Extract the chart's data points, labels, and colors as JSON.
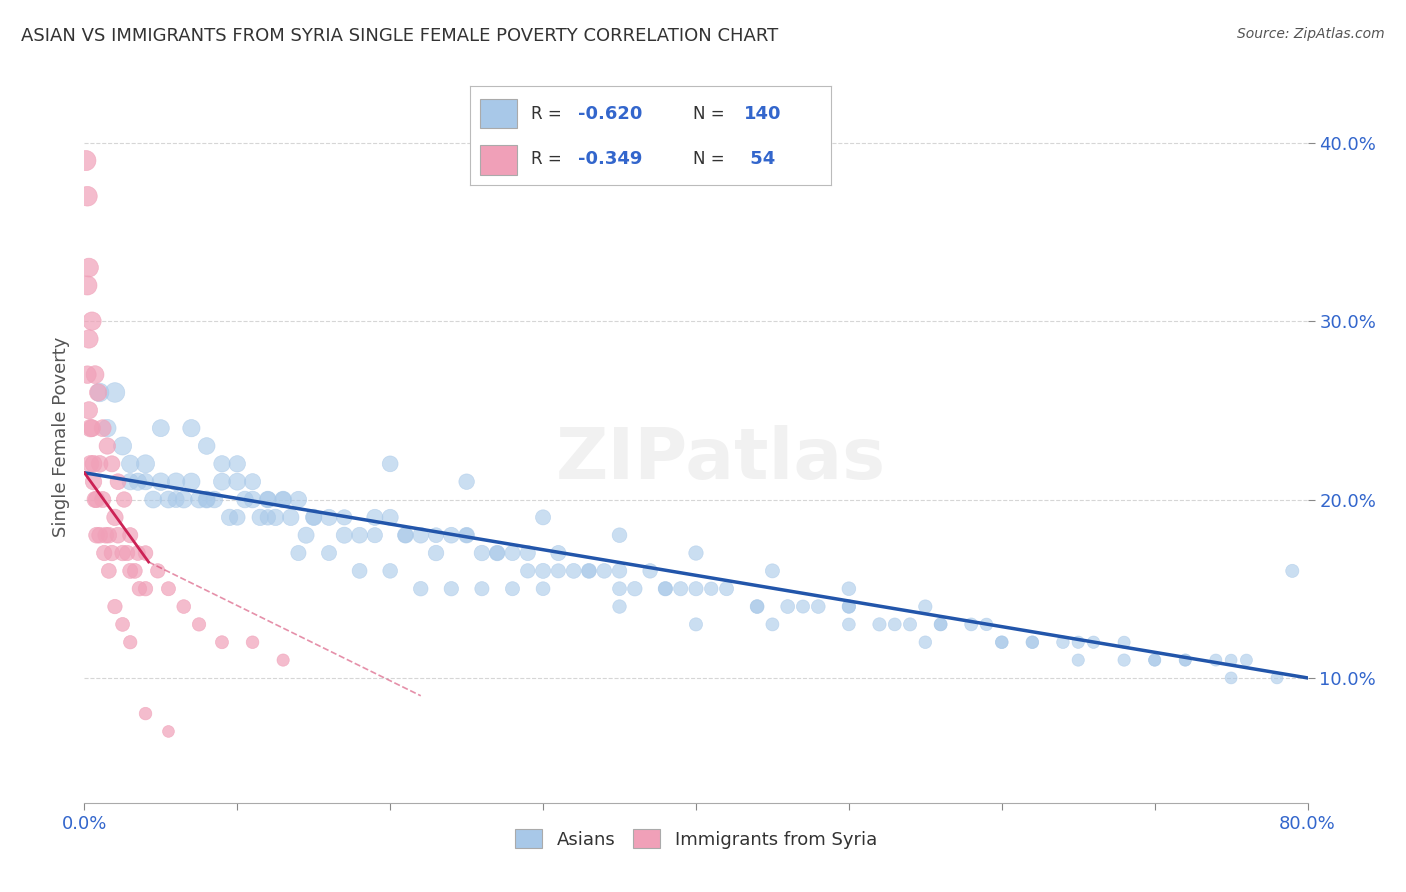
{
  "title": "ASIAN VS IMMIGRANTS FROM SYRIA SINGLE FEMALE POVERTY CORRELATION CHART",
  "source": "Source: ZipAtlas.com",
  "ylabel": "Single Female Poverty",
  "yticks": [
    "10.0%",
    "20.0%",
    "30.0%",
    "40.0%"
  ],
  "ytick_vals": [
    0.1,
    0.2,
    0.3,
    0.4
  ],
  "xlim": [
    0.0,
    0.8
  ],
  "ylim": [
    0.03,
    0.44
  ],
  "watermark": "ZIPatlas",
  "asian_color": "#A8C8E8",
  "syria_color": "#F0A0B8",
  "asian_line_color": "#2255AA",
  "syria_line_color": "#CC2255",
  "background_color": "#FFFFFF",
  "asian_scatter_x": [
    0.01,
    0.015,
    0.02,
    0.025,
    0.03,
    0.035,
    0.04,
    0.045,
    0.05,
    0.055,
    0.06,
    0.065,
    0.07,
    0.075,
    0.08,
    0.085,
    0.09,
    0.095,
    0.1,
    0.105,
    0.11,
    0.115,
    0.12,
    0.125,
    0.13,
    0.135,
    0.14,
    0.145,
    0.15,
    0.16,
    0.17,
    0.18,
    0.19,
    0.2,
    0.21,
    0.22,
    0.23,
    0.24,
    0.25,
    0.26,
    0.27,
    0.28,
    0.29,
    0.3,
    0.31,
    0.32,
    0.33,
    0.34,
    0.35,
    0.36,
    0.37,
    0.38,
    0.39,
    0.4,
    0.42,
    0.44,
    0.46,
    0.48,
    0.5,
    0.52,
    0.54,
    0.56,
    0.58,
    0.6,
    0.62,
    0.64,
    0.66,
    0.68,
    0.7,
    0.72,
    0.74,
    0.76,
    0.78,
    0.79,
    0.05,
    0.07,
    0.08,
    0.09,
    0.1,
    0.11,
    0.12,
    0.13,
    0.15,
    0.17,
    0.19,
    0.21,
    0.23,
    0.25,
    0.27,
    0.29,
    0.31,
    0.33,
    0.35,
    0.38,
    0.41,
    0.44,
    0.47,
    0.5,
    0.53,
    0.56,
    0.59,
    0.62,
    0.65,
    0.68,
    0.72,
    0.75,
    0.03,
    0.04,
    0.06,
    0.08,
    0.1,
    0.12,
    0.14,
    0.16,
    0.18,
    0.2,
    0.22,
    0.24,
    0.26,
    0.28,
    0.3,
    0.35,
    0.4,
    0.45,
    0.5,
    0.55,
    0.6,
    0.65,
    0.7,
    0.75,
    0.2,
    0.25,
    0.3,
    0.35,
    0.4,
    0.45,
    0.5,
    0.55
  ],
  "asian_scatter_y": [
    0.26,
    0.24,
    0.26,
    0.23,
    0.22,
    0.21,
    0.22,
    0.2,
    0.21,
    0.2,
    0.21,
    0.2,
    0.21,
    0.2,
    0.2,
    0.2,
    0.21,
    0.19,
    0.21,
    0.2,
    0.2,
    0.19,
    0.2,
    0.19,
    0.2,
    0.19,
    0.2,
    0.18,
    0.19,
    0.19,
    0.18,
    0.18,
    0.19,
    0.19,
    0.18,
    0.18,
    0.17,
    0.18,
    0.18,
    0.17,
    0.17,
    0.17,
    0.17,
    0.16,
    0.17,
    0.16,
    0.16,
    0.16,
    0.16,
    0.15,
    0.16,
    0.15,
    0.15,
    0.15,
    0.15,
    0.14,
    0.14,
    0.14,
    0.14,
    0.13,
    0.13,
    0.13,
    0.13,
    0.12,
    0.12,
    0.12,
    0.12,
    0.11,
    0.11,
    0.11,
    0.11,
    0.11,
    0.1,
    0.16,
    0.24,
    0.24,
    0.23,
    0.22,
    0.22,
    0.21,
    0.2,
    0.2,
    0.19,
    0.19,
    0.18,
    0.18,
    0.18,
    0.18,
    0.17,
    0.16,
    0.16,
    0.16,
    0.15,
    0.15,
    0.15,
    0.14,
    0.14,
    0.14,
    0.13,
    0.13,
    0.13,
    0.12,
    0.12,
    0.12,
    0.11,
    0.11,
    0.21,
    0.21,
    0.2,
    0.2,
    0.19,
    0.19,
    0.17,
    0.17,
    0.16,
    0.16,
    0.15,
    0.15,
    0.15,
    0.15,
    0.15,
    0.14,
    0.13,
    0.13,
    0.13,
    0.12,
    0.12,
    0.11,
    0.11,
    0.1,
    0.22,
    0.21,
    0.19,
    0.18,
    0.17,
    0.16,
    0.15,
    0.14
  ],
  "asian_scatter_size": [
    180,
    160,
    200,
    170,
    160,
    155,
    170,
    150,
    160,
    150,
    160,
    150,
    155,
    150,
    150,
    145,
    150,
    140,
    150,
    145,
    145,
    140,
    145,
    140,
    145,
    140,
    140,
    135,
    140,
    135,
    135,
    130,
    135,
    135,
    130,
    130,
    125,
    130,
    128,
    125,
    125,
    120,
    120,
    118,
    120,
    115,
    115,
    112,
    110,
    110,
    110,
    108,
    105,
    105,
    102,
    100,
    100,
    98,
    95,
    92,
    90,
    88,
    87,
    85,
    83,
    82,
    80,
    79,
    78,
    77,
    76,
    75,
    74,
    90,
    150,
    155,
    145,
    140,
    140,
    135,
    130,
    128,
    125,
    122,
    120,
    118,
    115,
    112,
    110,
    108,
    105,
    103,
    100,
    98,
    95,
    92,
    90,
    88,
    86,
    84,
    82,
    80,
    79,
    77,
    75,
    73,
    140,
    138,
    135,
    130,
    128,
    125,
    120,
    118,
    115,
    112,
    110,
    108,
    105,
    103,
    100,
    95,
    90,
    88,
    85,
    83,
    80,
    78,
    76,
    74,
    130,
    125,
    118,
    112,
    108,
    103,
    98,
    93
  ],
  "syria_scatter_x": [
    0.002,
    0.003,
    0.004,
    0.005,
    0.006,
    0.007,
    0.008,
    0.01,
    0.012,
    0.014,
    0.016,
    0.018,
    0.02,
    0.022,
    0.025,
    0.028,
    0.03,
    0.033,
    0.036,
    0.04,
    0.002,
    0.003,
    0.005,
    0.007,
    0.009,
    0.012,
    0.015,
    0.018,
    0.022,
    0.026,
    0.03,
    0.035,
    0.04,
    0.048,
    0.055,
    0.065,
    0.075,
    0.09,
    0.11,
    0.13,
    0.001,
    0.002,
    0.003,
    0.004,
    0.006,
    0.008,
    0.01,
    0.013,
    0.016,
    0.02,
    0.025,
    0.03,
    0.04,
    0.055
  ],
  "syria_scatter_y": [
    0.27,
    0.25,
    0.22,
    0.24,
    0.21,
    0.2,
    0.18,
    0.22,
    0.2,
    0.18,
    0.18,
    0.17,
    0.19,
    0.18,
    0.17,
    0.17,
    0.16,
    0.16,
    0.15,
    0.15,
    0.37,
    0.33,
    0.3,
    0.27,
    0.26,
    0.24,
    0.23,
    0.22,
    0.21,
    0.2,
    0.18,
    0.17,
    0.17,
    0.16,
    0.15,
    0.14,
    0.13,
    0.12,
    0.12,
    0.11,
    0.39,
    0.32,
    0.29,
    0.24,
    0.22,
    0.2,
    0.18,
    0.17,
    0.16,
    0.14,
    0.13,
    0.12,
    0.08,
    0.07
  ],
  "syria_scatter_size": [
    160,
    155,
    145,
    150,
    140,
    135,
    130,
    145,
    135,
    130,
    128,
    125,
    140,
    130,
    125,
    122,
    118,
    115,
    110,
    108,
    200,
    185,
    175,
    165,
    155,
    148,
    140,
    135,
    130,
    125,
    120,
    115,
    112,
    108,
    103,
    98,
    93,
    88,
    83,
    78,
    210,
    190,
    175,
    160,
    148,
    138,
    130,
    122,
    115,
    108,
    100,
    93,
    82,
    72
  ]
}
